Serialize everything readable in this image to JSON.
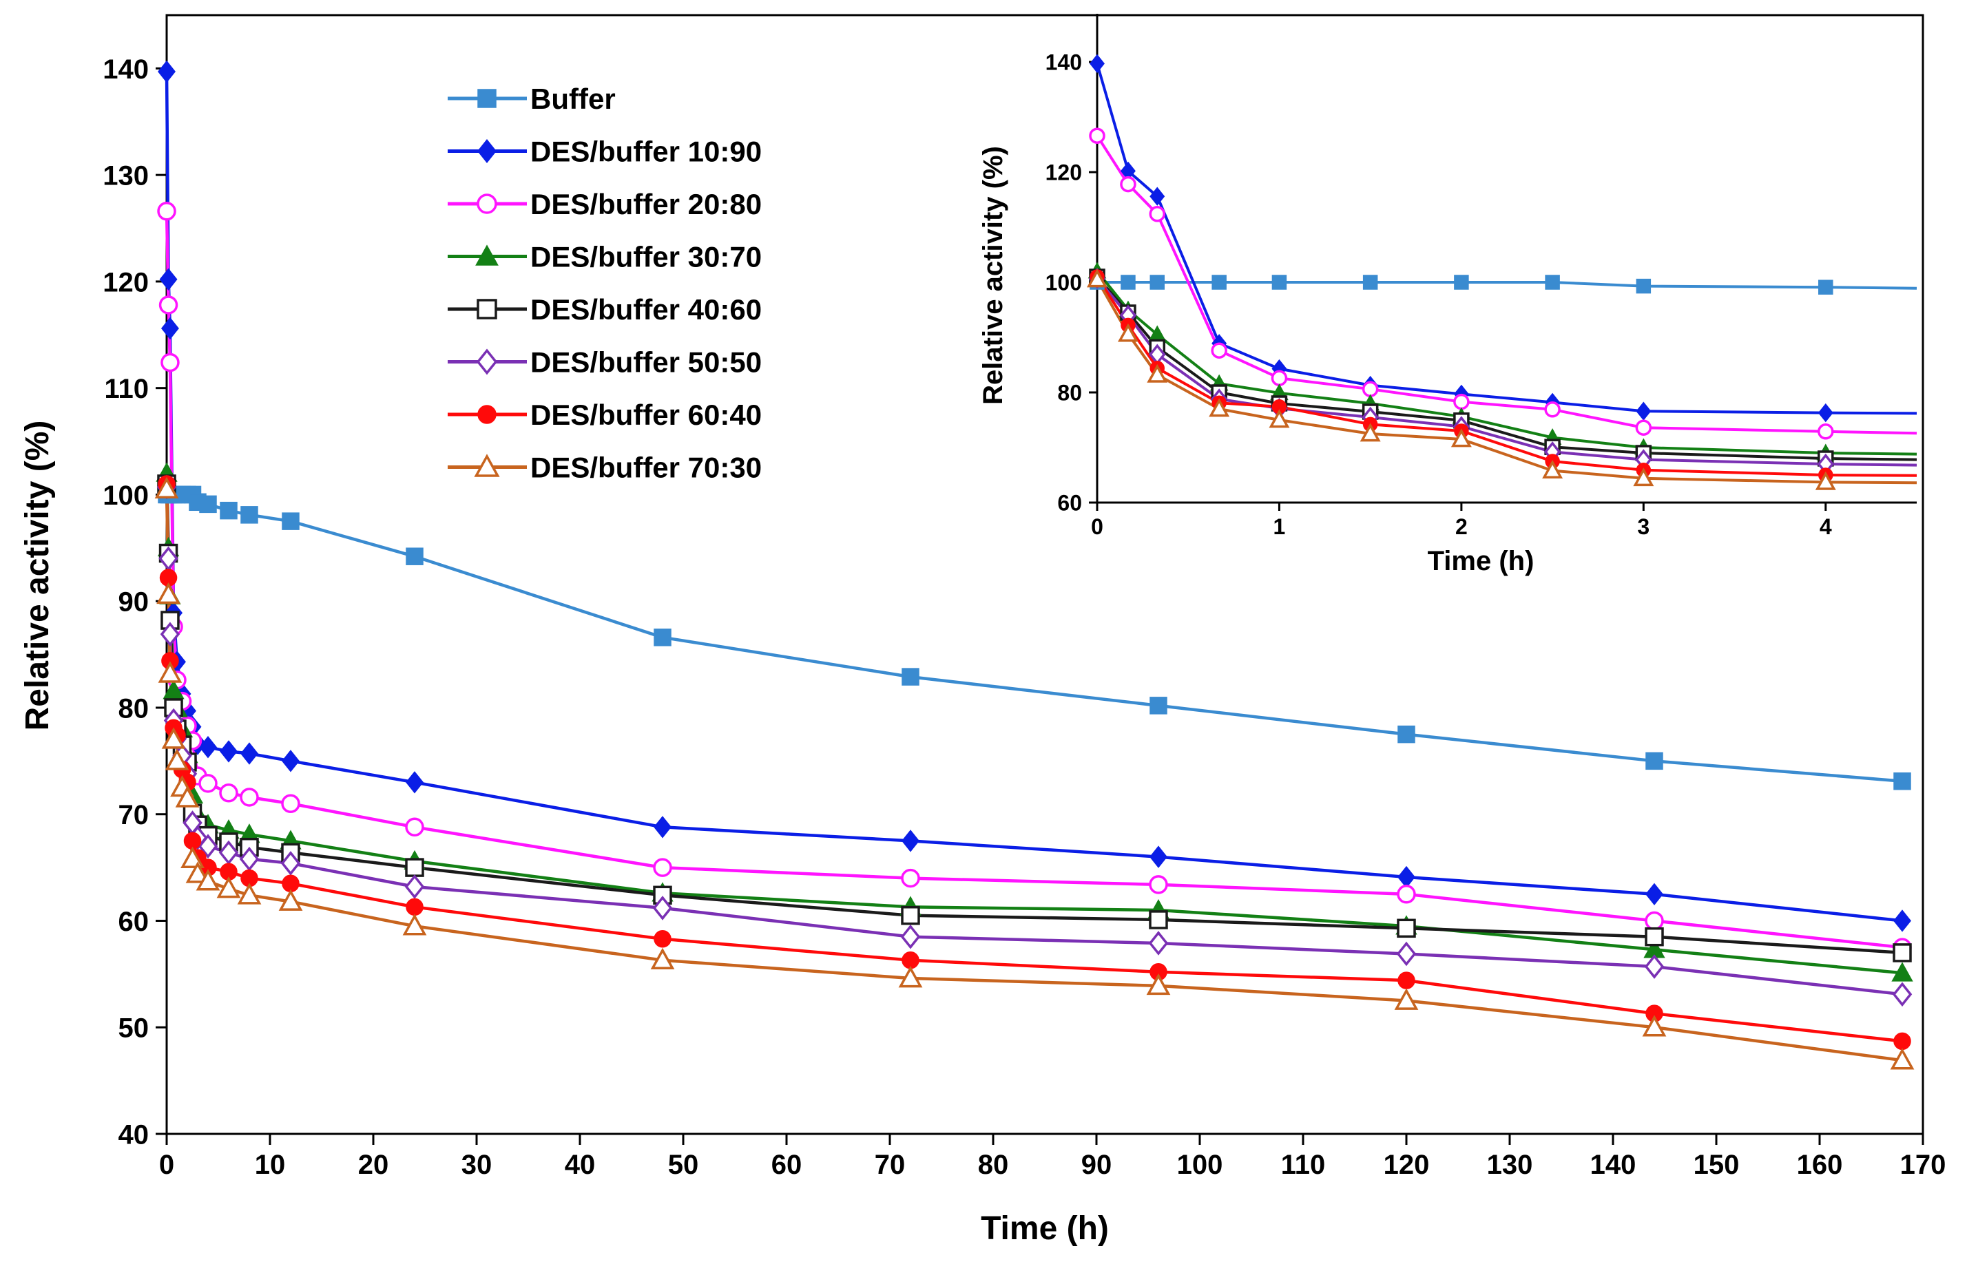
{
  "colors": {
    "Buffer": "#3a8bd0",
    "DES/buffer 10:90": "#0a1ee6",
    "DES/buffer 20:80": "#ff14ff",
    "DES/buffer 30:70": "#138015",
    "DES/buffer 40:60": "#1a1a1a",
    "DES/buffer 50:50": "#7a30b4",
    "DES/buffer 60:40": "#ff0a0a",
    "DES/buffer 70:30": "#c8641e"
  },
  "chart_data": [
    {
      "id": "main",
      "type": "line",
      "title": "",
      "xlabel": "Time (h)",
      "ylabel": "Relative activity (%)",
      "xlim": [
        0,
        170
      ],
      "ylim": [
        40,
        145
      ],
      "xticks": [
        0,
        10,
        20,
        30,
        40,
        50,
        60,
        70,
        80,
        90,
        100,
        110,
        120,
        130,
        140,
        150,
        160,
        170
      ],
      "yticks": [
        40,
        50,
        60,
        70,
        80,
        90,
        100,
        110,
        120,
        130,
        140
      ],
      "legend": "upper-left",
      "series": [
        {
          "name": "Buffer",
          "marker": "square-filled",
          "x": [
            0,
            0.17,
            0.33,
            0.67,
            1,
            1.5,
            2,
            2.5,
            3,
            4,
            6,
            8,
            12,
            24,
            48,
            72,
            96,
            120,
            144,
            168
          ],
          "y": [
            100,
            100,
            100,
            100,
            100,
            100,
            100,
            100,
            99.3,
            99.1,
            98.5,
            98.1,
            97.5,
            94.2,
            86.6,
            82.9,
            80.2,
            77.5,
            75.0,
            73.1
          ]
        },
        {
          "name": "DES/buffer 10:90",
          "marker": "diamond-filled",
          "x": [
            0,
            0.17,
            0.33,
            0.67,
            1,
            1.5,
            2,
            2.5,
            3,
            4,
            6,
            8,
            12,
            24,
            48,
            72,
            96,
            120,
            144,
            168
          ],
          "y": [
            139.7,
            120.2,
            115.6,
            88.9,
            84.3,
            81.3,
            79.7,
            78.2,
            76.6,
            76.3,
            75.9,
            75.7,
            75.0,
            73.0,
            68.8,
            67.5,
            66.0,
            64.1,
            62.5,
            60.0
          ]
        },
        {
          "name": "DES/buffer 20:80",
          "marker": "circle-open",
          "x": [
            0,
            0.17,
            0.33,
            0.67,
            1,
            1.5,
            2,
            2.5,
            3,
            4,
            6,
            8,
            12,
            24,
            48,
            72,
            96,
            120,
            144,
            168
          ],
          "y": [
            126.6,
            117.8,
            112.4,
            87.6,
            82.6,
            80.6,
            78.3,
            76.9,
            73.6,
            72.9,
            72.0,
            71.6,
            71.0,
            68.8,
            65.0,
            64.0,
            63.4,
            62.5,
            60.0,
            57.5
          ]
        },
        {
          "name": "DES/buffer 30:70",
          "marker": "triangle-filled",
          "x": [
            0,
            0.17,
            0.33,
            0.67,
            1,
            1.5,
            2,
            2.5,
            3,
            4,
            6,
            8,
            12,
            24,
            48,
            72,
            96,
            120,
            144,
            168
          ],
          "y": [
            102.0,
            95.0,
            90.5,
            81.6,
            79.9,
            78.0,
            75.6,
            71.8,
            70.0,
            69.0,
            68.5,
            68.1,
            67.5,
            65.6,
            62.6,
            61.3,
            61.0,
            59.5,
            57.3,
            55.1
          ]
        },
        {
          "name": "DES/buffer 40:60",
          "marker": "square-open",
          "x": [
            0,
            0.17,
            0.33,
            0.67,
            1,
            1.5,
            2,
            2.5,
            3,
            4,
            6,
            8,
            12,
            24,
            48,
            72,
            96,
            120,
            144,
            168
          ],
          "y": [
            101.0,
            94.5,
            88.2,
            80.0,
            78.0,
            76.5,
            74.9,
            70.1,
            69.0,
            68.0,
            67.4,
            66.9,
            66.4,
            65.0,
            62.4,
            60.5,
            60.1,
            59.3,
            58.5,
            57.0
          ]
        },
        {
          "name": "DES/buffer 50:50",
          "marker": "diamond-open",
          "x": [
            0,
            0.17,
            0.33,
            0.67,
            1,
            1.5,
            2,
            2.5,
            3,
            4,
            6,
            8,
            12,
            24,
            48,
            72,
            96,
            120,
            144,
            168
          ],
          "y": [
            100.7,
            94.0,
            86.9,
            78.8,
            77.1,
            75.5,
            73.8,
            69.2,
            67.8,
            67.0,
            66.4,
            65.8,
            65.4,
            63.2,
            61.2,
            58.5,
            57.9,
            56.9,
            55.7,
            53.1
          ]
        },
        {
          "name": "DES/buffer 60:40",
          "marker": "circle-filled",
          "x": [
            0,
            0.17,
            0.33,
            0.67,
            1,
            1.5,
            2,
            2.5,
            3,
            4,
            6,
            8,
            12,
            24,
            48,
            72,
            96,
            120,
            144,
            168
          ],
          "y": [
            101.0,
            92.2,
            84.4,
            78.1,
            77.4,
            74.2,
            73.0,
            67.5,
            65.9,
            65.0,
            64.6,
            64.0,
            63.5,
            61.3,
            58.3,
            56.3,
            55.2,
            54.4,
            51.3,
            48.7
          ]
        },
        {
          "name": "DES/buffer 70:30",
          "marker": "triangle-open",
          "x": [
            0,
            0.17,
            0.33,
            0.67,
            1,
            1.5,
            2,
            2.5,
            3,
            4,
            6,
            8,
            12,
            24,
            48,
            72,
            96,
            120,
            144,
            168
          ],
          "y": [
            100.5,
            90.6,
            83.2,
            77.0,
            75.0,
            72.5,
            71.5,
            65.8,
            64.4,
            63.7,
            63.0,
            62.4,
            61.8,
            59.5,
            56.3,
            54.6,
            53.9,
            52.5,
            50.0,
            46.9
          ]
        }
      ]
    },
    {
      "id": "inset",
      "type": "line",
      "title": "",
      "xlabel": "Time (h)",
      "ylabel": "Relative activity (%)",
      "xlim": [
        0,
        4.5
      ],
      "ylim": [
        60,
        145
      ],
      "xticks": [
        0,
        1,
        2,
        3,
        4
      ],
      "yticks": [
        60,
        80,
        100,
        120,
        140
      ],
      "series": [
        {
          "name": "Buffer",
          "marker": "square-filled",
          "x": [
            0,
            0.17,
            0.33,
            0.67,
            1,
            1.5,
            2,
            2.5,
            3,
            4,
            4.5
          ],
          "y": [
            100,
            100,
            100,
            100,
            100,
            100,
            100,
            100,
            99.3,
            99.1,
            98.9
          ]
        },
        {
          "name": "DES/buffer 10:90",
          "marker": "diamond-filled",
          "x": [
            0,
            0.17,
            0.33,
            0.67,
            1,
            1.5,
            2,
            2.5,
            3,
            4,
            4.5
          ],
          "y": [
            139.7,
            120.2,
            115.6,
            88.9,
            84.3,
            81.3,
            79.7,
            78.2,
            76.6,
            76.3,
            76.2
          ]
        },
        {
          "name": "DES/buffer 20:80",
          "marker": "circle-open",
          "x": [
            0,
            0.17,
            0.33,
            0.67,
            1,
            1.5,
            2,
            2.5,
            3,
            4,
            4.5
          ],
          "y": [
            126.6,
            117.8,
            112.4,
            87.6,
            82.6,
            80.6,
            78.3,
            76.9,
            73.6,
            72.9,
            72.6
          ]
        },
        {
          "name": "DES/buffer 30:70",
          "marker": "triangle-filled",
          "x": [
            0,
            0.17,
            0.33,
            0.67,
            1,
            1.5,
            2,
            2.5,
            3,
            4,
            4.5
          ],
          "y": [
            102.0,
            95.0,
            90.5,
            81.6,
            79.9,
            78.0,
            75.6,
            71.8,
            70.0,
            69.0,
            68.8
          ]
        },
        {
          "name": "DES/buffer 40:60",
          "marker": "square-open",
          "x": [
            0,
            0.17,
            0.33,
            0.67,
            1,
            1.5,
            2,
            2.5,
            3,
            4,
            4.5
          ],
          "y": [
            101.0,
            94.5,
            88.2,
            80.0,
            78.0,
            76.5,
            74.9,
            70.1,
            69.0,
            68.0,
            67.8
          ]
        },
        {
          "name": "DES/buffer 50:50",
          "marker": "diamond-open",
          "x": [
            0,
            0.17,
            0.33,
            0.67,
            1,
            1.5,
            2,
            2.5,
            3,
            4,
            4.5
          ],
          "y": [
            100.7,
            94.0,
            86.9,
            78.8,
            77.1,
            75.5,
            73.8,
            69.2,
            67.8,
            67.0,
            66.8
          ]
        },
        {
          "name": "DES/buffer 60:40",
          "marker": "circle-filled",
          "x": [
            0,
            0.17,
            0.33,
            0.67,
            1,
            1.5,
            2,
            2.5,
            3,
            4,
            4.5
          ],
          "y": [
            101.0,
            92.2,
            84.4,
            78.1,
            77.4,
            74.2,
            73.0,
            67.5,
            65.9,
            65.0,
            64.9
          ]
        },
        {
          "name": "DES/buffer 70:30",
          "marker": "triangle-open",
          "x": [
            0,
            0.17,
            0.33,
            0.67,
            1,
            1.5,
            2,
            2.5,
            3,
            4,
            4.5
          ],
          "y": [
            100.5,
            90.6,
            83.2,
            77.0,
            75.0,
            72.5,
            71.5,
            65.8,
            64.4,
            63.7,
            63.6
          ]
        }
      ]
    }
  ]
}
